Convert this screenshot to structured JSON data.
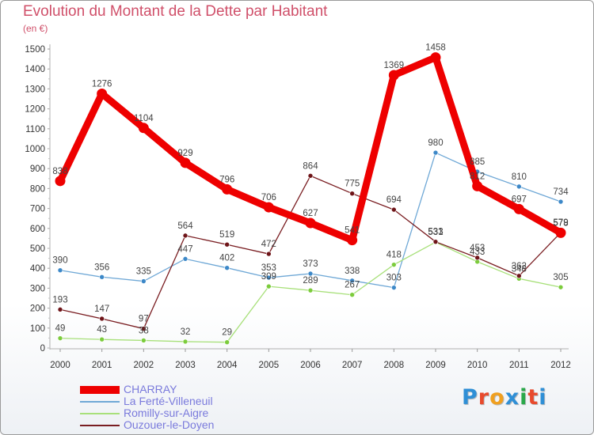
{
  "title": "Evolution du Montant de la Dette par Habitant",
  "subtitle": "(en €)",
  "logo": {
    "text": "Proxiti",
    "letter_colors": [
      "#2f8fd6",
      "#e84a2d",
      "#f0a020",
      "#2f8fd6",
      "#2aa84a",
      "#e84a2d",
      "#2f8fd6"
    ]
  },
  "chart_data": {
    "type": "line",
    "title": "Evolution du Montant de la Dette par Habitant",
    "subtitle": "(en €)",
    "xlabel": "",
    "ylabel": "",
    "ylim": [
      0,
      1500
    ],
    "ytick_step": 100,
    "grid": false,
    "legend_position": "bottom-left",
    "x": [
      "2000",
      "2001",
      "2002",
      "2003",
      "2004",
      "2005",
      "2006",
      "2007",
      "2008",
      "2009",
      "2010",
      "2011",
      "2012"
    ],
    "series": [
      {
        "name": "CHARRAY",
        "color": "#ee0000",
        "marker_color": "#ee0000",
        "emphasis": true,
        "values": [
          838,
          1276,
          1104,
          929,
          796,
          706,
          627,
          541,
          1369,
          1458,
          812,
          697,
          578
        ],
        "labels": [
          "838",
          "1276",
          "1104",
          "929",
          "796",
          "706",
          "627",
          "541",
          "1369",
          "1458",
          "812",
          "697",
          "578"
        ]
      },
      {
        "name": "La Ferté-Villeneuil",
        "color": "#6fa8d6",
        "marker_color": "#3c88c8",
        "values": [
          390,
          356,
          335,
          447,
          402,
          353,
          373,
          338,
          303,
          980,
          885,
          810,
          734
        ],
        "labels": [
          "390",
          "356",
          "335",
          "447",
          "402",
          "353",
          "373",
          "338",
          "303",
          "980",
          "885",
          "810",
          "734"
        ]
      },
      {
        "name": "Romilly-sur-Aigre",
        "color": "#a8e07a",
        "marker_color": "#7ccc3c",
        "values": [
          49,
          43,
          38,
          32,
          29,
          309,
          289,
          267,
          418,
          531,
          433,
          348,
          305
        ],
        "labels": [
          "49",
          "43",
          "38",
          "32",
          "29",
          "309",
          "289",
          "267",
          "418",
          "531",
          "433",
          "348",
          "305"
        ]
      },
      {
        "name": "Ouzouer-le-Doyen",
        "color": "#7a1e22",
        "marker_color": "#6e1418",
        "values": [
          193,
          147,
          97,
          564,
          519,
          472,
          864,
          775,
          694,
          533,
          453,
          362,
          579
        ],
        "labels": [
          "193",
          "147",
          "97",
          "564",
          "519",
          "472",
          "864",
          "775",
          "694",
          "533",
          "453",
          "362",
          "579"
        ]
      }
    ]
  }
}
